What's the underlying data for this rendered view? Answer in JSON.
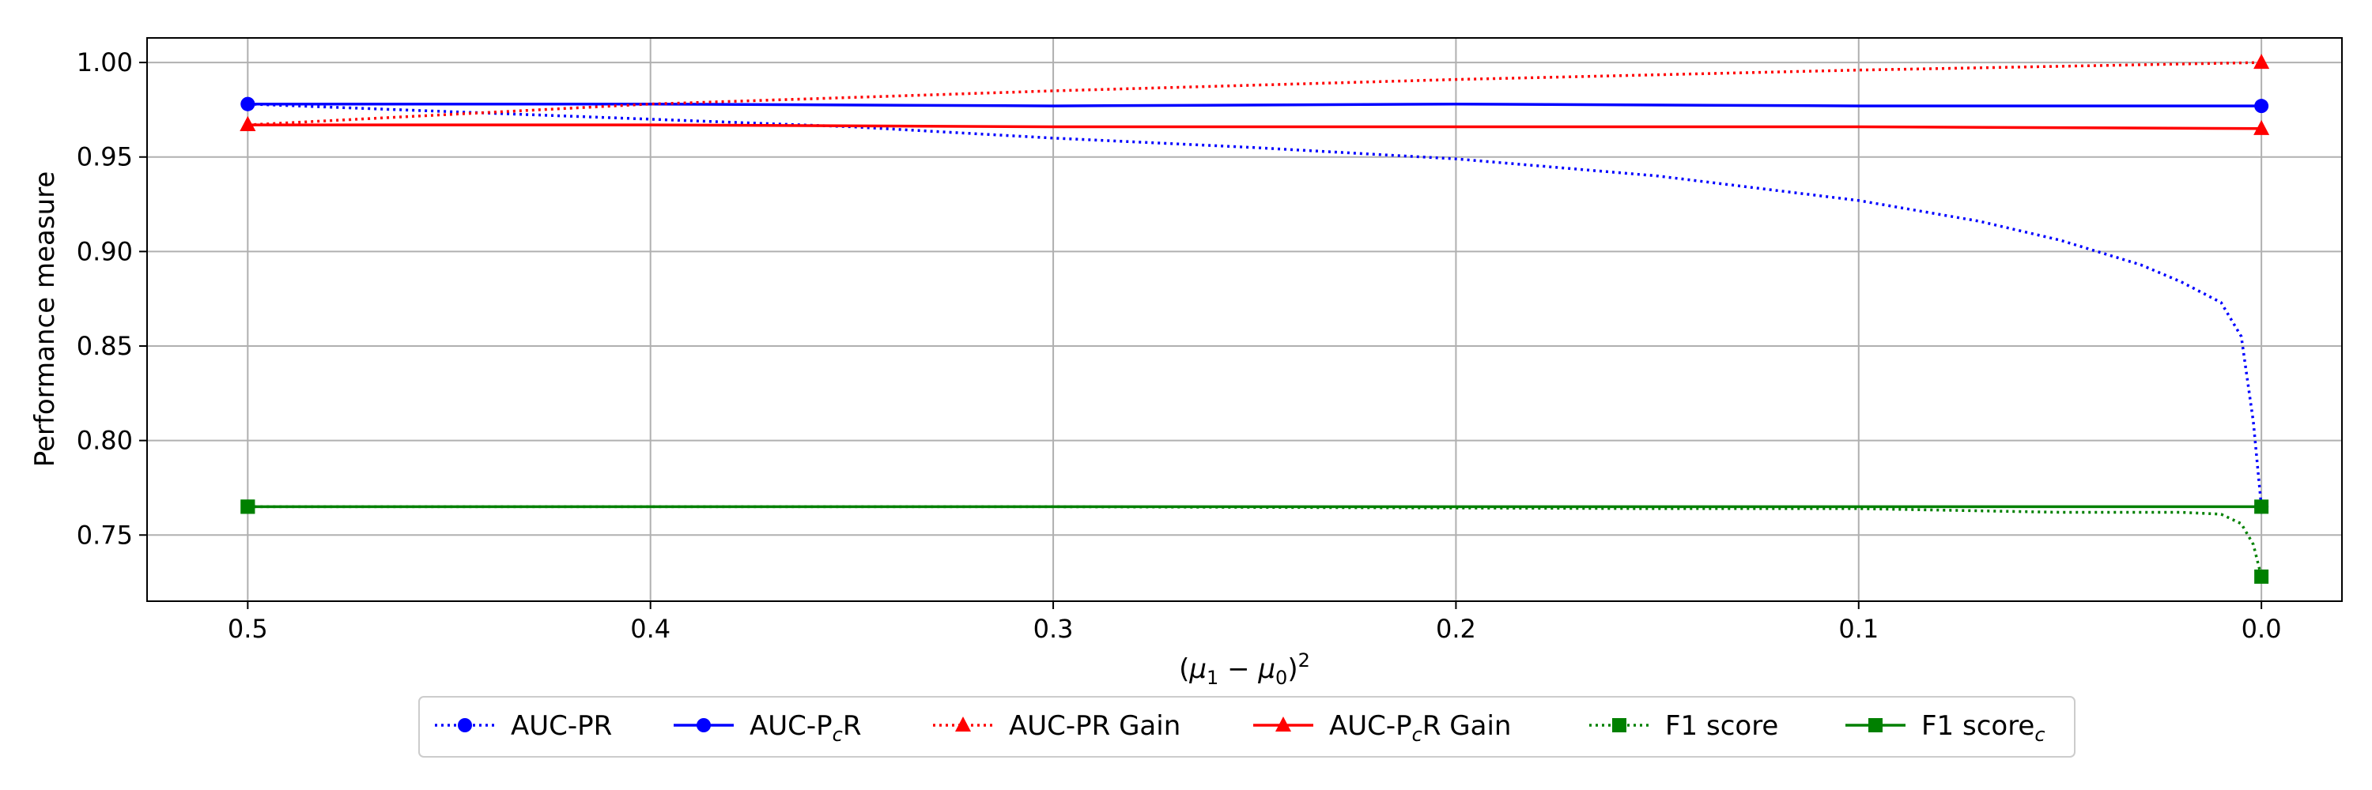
{
  "chart_data": {
    "type": "line",
    "title": "",
    "xlabel": "(μ₁ − μ₀)²",
    "ylabel": "Performance measure",
    "xlim": [
      0.525,
      -0.02
    ],
    "x_reversed": true,
    "ylim": [
      0.715,
      1.013
    ],
    "xticks": [
      {
        "value": 0.5,
        "label": "0.5"
      },
      {
        "value": 0.4,
        "label": "0.4"
      },
      {
        "value": 0.3,
        "label": "0.3"
      },
      {
        "value": 0.2,
        "label": "0.2"
      },
      {
        "value": 0.1,
        "label": "0.1"
      },
      {
        "value": 0.0,
        "label": "0.0"
      }
    ],
    "yticks": [
      {
        "value": 0.75,
        "label": "0.75"
      },
      {
        "value": 0.8,
        "label": "0.80"
      },
      {
        "value": 0.85,
        "label": "0.85"
      },
      {
        "value": 0.9,
        "label": "0.90"
      },
      {
        "value": 0.95,
        "label": "0.95"
      },
      {
        "value": 1.0,
        "label": "1.00"
      }
    ],
    "grid": true,
    "legend_position": "bottom-center",
    "series": [
      {
        "name": "AUC-PR",
        "color": "#0000ff",
        "style": "dotted",
        "marker": "circle",
        "x": [
          0.5,
          0.45,
          0.4,
          0.35,
          0.3,
          0.25,
          0.2,
          0.15,
          0.1,
          0.07,
          0.05,
          0.03,
          0.02,
          0.01,
          0.005,
          0.002,
          0.0
        ],
        "y": [
          0.978,
          0.974,
          0.97,
          0.966,
          0.96,
          0.955,
          0.949,
          0.94,
          0.927,
          0.916,
          0.906,
          0.893,
          0.884,
          0.873,
          0.855,
          0.81,
          0.765
        ],
        "markers_at": [
          0.5,
          0.0
        ]
      },
      {
        "name": "AUC-PcR",
        "label_main": "AUC-P",
        "label_sub": "c",
        "label_tail": "R",
        "color": "#0000ff",
        "style": "solid",
        "marker": "circle",
        "x": [
          0.5,
          0.4,
          0.3,
          0.2,
          0.1,
          0.0
        ],
        "y": [
          0.978,
          0.978,
          0.977,
          0.978,
          0.977,
          0.977
        ],
        "markers_at": [
          0.5,
          0.0
        ]
      },
      {
        "name": "AUC-PR Gain",
        "color": "#ff0000",
        "style": "dotted",
        "marker": "triangle",
        "x": [
          0.5,
          0.4,
          0.3,
          0.2,
          0.1,
          0.0
        ],
        "y": [
          0.967,
          0.978,
          0.985,
          0.991,
          0.996,
          1.0
        ],
        "markers_at": [
          0.5,
          0.0
        ]
      },
      {
        "name": "AUC-PcR Gain",
        "label_main": "AUC-P",
        "label_sub": "c",
        "label_tail": "R Gain",
        "color": "#ff0000",
        "style": "solid",
        "marker": "triangle",
        "x": [
          0.5,
          0.4,
          0.3,
          0.2,
          0.1,
          0.0
        ],
        "y": [
          0.967,
          0.967,
          0.966,
          0.966,
          0.966,
          0.965
        ],
        "markers_at": [
          0.5,
          0.0
        ]
      },
      {
        "name": "F1 score",
        "color": "#008000",
        "style": "dotted",
        "marker": "square",
        "x": [
          0.5,
          0.3,
          0.15,
          0.1,
          0.05,
          0.02,
          0.01,
          0.005,
          0.002,
          0.0
        ],
        "y": [
          0.765,
          0.765,
          0.764,
          0.764,
          0.762,
          0.762,
          0.761,
          0.756,
          0.745,
          0.728
        ],
        "markers_at": [
          0.5,
          0.0
        ]
      },
      {
        "name": "F1 scorec",
        "label_main": "F1 score",
        "label_sub": "c",
        "label_tail": "",
        "color": "#008000",
        "style": "solid",
        "marker": "square",
        "x": [
          0.5,
          0.3,
          0.1,
          0.0
        ],
        "y": [
          0.765,
          0.765,
          0.765,
          0.765
        ],
        "markers_at": [
          0.5,
          0.0
        ]
      }
    ]
  }
}
